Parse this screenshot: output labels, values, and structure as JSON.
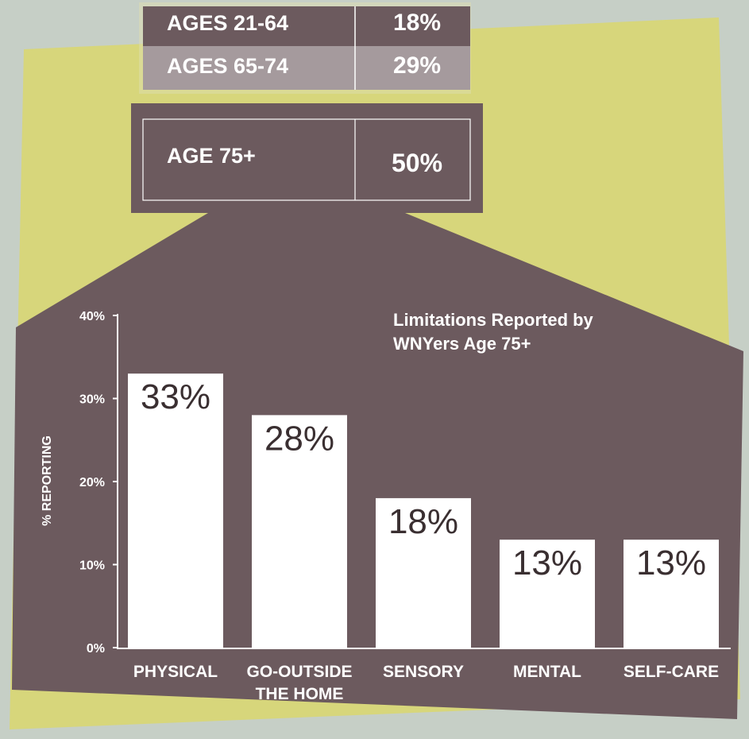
{
  "table": {
    "rows": [
      [
        "AGES 21-64",
        "18%"
      ],
      [
        "AGES 65-74",
        "29%"
      ],
      [
        "AGE 75+",
        "50%"
      ]
    ]
  },
  "chart_data": {
    "type": "bar",
    "title": "Limitations Reported by WNYers Age 75+",
    "y_label": "% REPORTING",
    "categories": [
      "PHYSICAL",
      "GO-OUTSIDE THE HOME",
      "SENSORY",
      "MENTAL",
      "SELF-CARE"
    ],
    "values": [
      33,
      28,
      18,
      13,
      13
    ],
    "value_labels": [
      "33%",
      "28%",
      "18%",
      "13%",
      "13%"
    ],
    "color": "#ffffff",
    "ylim": [
      0,
      40
    ],
    "yticks": [
      {
        "value": 0,
        "label": "0%"
      },
      {
        "value": 10,
        "label": "10%"
      },
      {
        "value": 20,
        "label": "20%"
      },
      {
        "value": 30,
        "label": "30%"
      },
      {
        "value": 40,
        "label": "40%"
      }
    ]
  }
}
